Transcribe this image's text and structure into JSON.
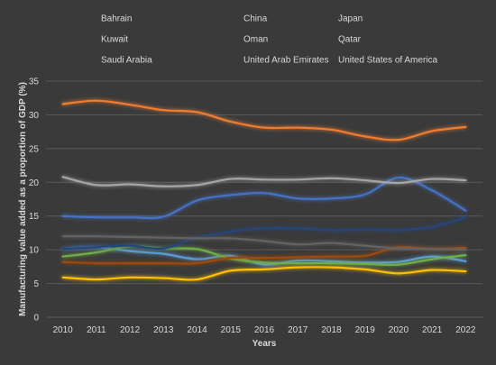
{
  "chart_data": {
    "type": "line",
    "title": "",
    "xlabel": "Years",
    "ylabel": "Manufacturing value added as a proportion of GDP (%)",
    "x": [
      "2010",
      "2011",
      "2012",
      "2013",
      "2014",
      "2015",
      "2016",
      "2017",
      "2018",
      "2019",
      "2020",
      "2021",
      "2022"
    ],
    "ylim": [
      0,
      35
    ],
    "yticks": [
      "0",
      "5",
      "10",
      "15",
      "20",
      "25",
      "30",
      "35"
    ],
    "grid": true,
    "legend_position": "top",
    "series": [
      {
        "name": "Bahrain",
        "color": "#4472c4",
        "values": [
          15.0,
          14.8,
          14.8,
          14.9,
          17.3,
          18.1,
          18.4,
          17.6,
          17.6,
          18.2,
          20.7,
          18.8,
          15.8
        ]
      },
      {
        "name": "China",
        "color": "#ed7d31",
        "values": [
          31.6,
          32.1,
          31.5,
          30.7,
          30.4,
          29.0,
          28.1,
          28.1,
          27.8,
          26.8,
          26.3,
          27.6,
          28.2
        ]
      },
      {
        "name": "Japan",
        "color": "#a5a5a5",
        "values": [
          20.8,
          19.6,
          19.7,
          19.4,
          19.6,
          20.5,
          20.4,
          20.4,
          20.6,
          20.3,
          19.9,
          20.5,
          20.3
        ]
      },
      {
        "name": "Kuwait",
        "color": "#ffc000",
        "values": [
          5.9,
          5.6,
          5.9,
          5.8,
          5.6,
          6.9,
          7.1,
          7.4,
          7.4,
          7.1,
          6.5,
          7.0,
          6.8
        ]
      },
      {
        "name": "Oman",
        "color": "#5b9bd5",
        "values": [
          10.1,
          10.4,
          9.8,
          9.4,
          8.6,
          9.1,
          7.8,
          8.4,
          8.3,
          8.1,
          8.2,
          9.0,
          8.3
        ]
      },
      {
        "name": "Qatar",
        "color": "#70ad47",
        "values": [
          9.0,
          9.6,
          10.5,
          10.2,
          10.1,
          8.7,
          8.1,
          8.0,
          8.0,
          7.9,
          7.8,
          8.6,
          9.2
        ]
      },
      {
        "name": "Saudi Arabia",
        "color": "#264478",
        "values": [
          10.1,
          10.4,
          10.6,
          10.2,
          11.8,
          12.7,
          13.2,
          13.2,
          12.9,
          13.0,
          12.9,
          13.4,
          14.8
        ]
      },
      {
        "name": "United Arab Emirates",
        "color": "#9e480e",
        "values": [
          8.2,
          8.0,
          8.0,
          8.0,
          8.0,
          8.8,
          8.8,
          8.9,
          9.0,
          9.1,
          10.4,
          10.1,
          10.3
        ]
      },
      {
        "name": "United States of America",
        "color": "#636363",
        "values": [
          12.0,
          12.0,
          11.9,
          11.8,
          11.7,
          11.7,
          11.3,
          10.8,
          11.0,
          10.6,
          10.2,
          10.1,
          10.0
        ]
      }
    ]
  }
}
